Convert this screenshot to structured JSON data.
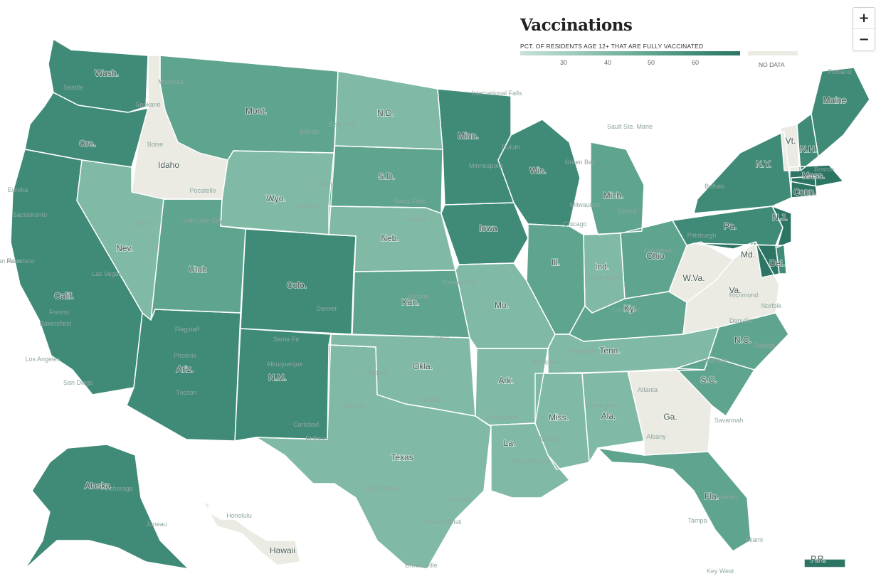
{
  "legend": {
    "title": "Vaccinations",
    "subtitle": "PCT. OF RESIDENTS AGE 12+ THAT ARE FULLY VACCINATED",
    "ticks": [
      "30",
      "40",
      "50",
      "60"
    ],
    "no_data_label": "NO DATA"
  },
  "zoom": {
    "in_label": "+",
    "out_label": "−"
  },
  "colors": {
    "scale": [
      "#c9e2d9",
      "#a6cfbf",
      "#80baa7",
      "#5fa48f",
      "#3f8b77",
      "#2c7564"
    ],
    "no_data": "#ebebe4",
    "background": "#ffffff"
  },
  "states": [
    {
      "id": "WA",
      "label": "Wash.",
      "level": 4
    },
    {
      "id": "OR",
      "label": "Ore.",
      "level": 4
    },
    {
      "id": "CA",
      "label": "Calif.",
      "level": 4
    },
    {
      "id": "ID",
      "label": "Idaho",
      "level": -1
    },
    {
      "id": "NV",
      "label": "Nev.",
      "level": 2
    },
    {
      "id": "MT",
      "label": "Mont.",
      "level": 3
    },
    {
      "id": "WY",
      "label": "Wyo.",
      "level": 2
    },
    {
      "id": "UT",
      "label": "Utah",
      "level": 3
    },
    {
      "id": "AZ",
      "label": "Ariz.",
      "level": 4
    },
    {
      "id": "CO",
      "label": "Colo.",
      "level": 4
    },
    {
      "id": "NM",
      "label": "N.M.",
      "level": 4
    },
    {
      "id": "ND",
      "label": "N.D.",
      "level": 2
    },
    {
      "id": "SD",
      "label": "S.D.",
      "level": 3
    },
    {
      "id": "NE",
      "label": "Neb.",
      "level": 2
    },
    {
      "id": "KS",
      "label": "Kan.",
      "level": 3
    },
    {
      "id": "OK",
      "label": "Okla.",
      "level": 2
    },
    {
      "id": "TX",
      "label": "Texas",
      "level": 2
    },
    {
      "id": "MN",
      "label": "Minn.",
      "level": 4
    },
    {
      "id": "IA",
      "label": "Iowa",
      "level": 4
    },
    {
      "id": "MO",
      "label": "Mo.",
      "level": 2
    },
    {
      "id": "AR",
      "label": "Ark.",
      "level": 2
    },
    {
      "id": "LA",
      "label": "La.",
      "level": 2
    },
    {
      "id": "WI",
      "label": "Wis.",
      "level": 4
    },
    {
      "id": "IL",
      "label": "Ill.",
      "level": 3
    },
    {
      "id": "MI",
      "label": "Mich.",
      "level": 3
    },
    {
      "id": "IN",
      "label": "Ind.",
      "level": 2
    },
    {
      "id": "OH",
      "label": "Ohio",
      "level": 3
    },
    {
      "id": "KY",
      "label": "Ky.",
      "level": 3
    },
    {
      "id": "TN",
      "label": "Tenn.",
      "level": 2
    },
    {
      "id": "MS",
      "label": "Miss.",
      "level": 2
    },
    {
      "id": "AL",
      "label": "Ala.",
      "level": 2
    },
    {
      "id": "GA",
      "label": "Ga.",
      "level": -1
    },
    {
      "id": "FL",
      "label": "Fla.",
      "level": 3
    },
    {
      "id": "SC",
      "label": "S.C.",
      "level": 3
    },
    {
      "id": "NC",
      "label": "N.C.",
      "level": 3
    },
    {
      "id": "VA",
      "label": "Va.",
      "level": -1
    },
    {
      "id": "WV",
      "label": "W.Va.",
      "level": -1
    },
    {
      "id": "PA",
      "label": "Pa.",
      "level": 4
    },
    {
      "id": "NY",
      "label": "N.Y.",
      "level": 4
    },
    {
      "id": "NJ",
      "label": "N.J.",
      "level": 5
    },
    {
      "id": "DE",
      "label": "Del.",
      "level": 4
    },
    {
      "id": "MD",
      "label": "Md.",
      "level": 5
    },
    {
      "id": "CT",
      "label": "Conn.",
      "level": 5
    },
    {
      "id": "MA",
      "label": "Mass.",
      "level": 5
    },
    {
      "id": "VT",
      "label": "Vt.",
      "level": -1
    },
    {
      "id": "NH",
      "label": "N.H.",
      "level": 4
    },
    {
      "id": "ME",
      "label": "Maine",
      "level": 4
    },
    {
      "id": "AK",
      "label": "Alaska",
      "level": 4
    },
    {
      "id": "HI",
      "label": "Hawaii",
      "level": -1
    },
    {
      "id": "PR",
      "label": "P.R.",
      "level": 5
    }
  ],
  "cities": [
    "Bismarck",
    "Pierre",
    "Billings",
    "Missoula",
    "Boise",
    "Pocatello",
    "Casper",
    "Elko",
    "Reno",
    "Salt Lake City",
    "Las Vegas",
    "Flagstaff",
    "Phoenix",
    "Tucson",
    "Albuquerque",
    "Carlsbad",
    "Santa Fe",
    "Denver",
    "Amarillo",
    "Lubbock",
    "San Antonio",
    "Houston",
    "Dallas",
    "Tulsa",
    "Wichita",
    "Kansas City",
    "Omaha",
    "Sioux Falls",
    "Minneapolis",
    "Duluth",
    "Milwaukee",
    "Chicago",
    "Detroit",
    "Indianapolis",
    "Columbus",
    "Louisville",
    "Nashville",
    "Memphis",
    "Jackson",
    "Birmingham",
    "Atlanta",
    "Albany",
    "Savannah",
    "Charlotte",
    "Raleigh",
    "Norfolk",
    "Richmond",
    "Danville",
    "Pittsburgh",
    "Buffalo",
    "Boston",
    "Portland",
    "Seattle",
    "Spokane",
    "Eureka",
    "Sacramento",
    "San Francisco",
    "Fresno",
    "Los Angeles",
    "San Diego",
    "Bakersfield",
    "Anchorage",
    "Honolulu",
    "Juneau",
    "Miami",
    "Orlando",
    "Tampa",
    "New Orleans",
    "Shreveport",
    "El Paso",
    "Brownsville",
    "Corpus Christi",
    "Key West",
    "Sault Ste. Marie",
    "Green Bay",
    "International Falls"
  ]
}
